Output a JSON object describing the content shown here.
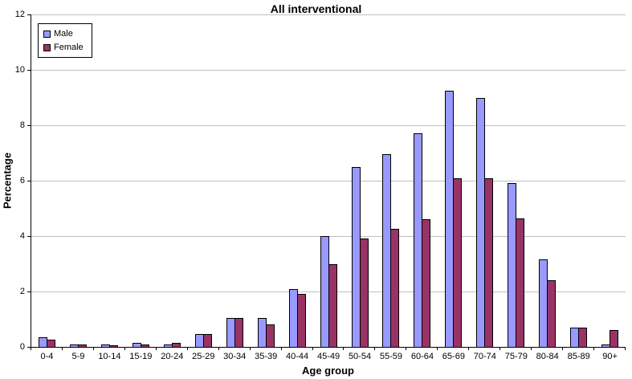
{
  "chart_data": {
    "type": "bar",
    "title": "All interventional",
    "xlabel": "Age group",
    "ylabel": "Percentage",
    "ylim": [
      0,
      12
    ],
    "yticks": [
      0,
      2,
      4,
      6,
      8,
      10,
      12
    ],
    "grid": true,
    "legend_position": "top-left",
    "categories": [
      "0-4",
      "5-9",
      "10-14",
      "15-19",
      "20-24",
      "25-29",
      "30-34",
      "35-39",
      "40-44",
      "45-49",
      "50-54",
      "55-59",
      "60-64",
      "65-69",
      "70-74",
      "75-79",
      "80-84",
      "85-89",
      "90+"
    ],
    "series": [
      {
        "name": "Male",
        "color": "#9999ff",
        "values": [
          0.35,
          0.1,
          0.1,
          0.15,
          0.1,
          0.45,
          1.05,
          1.05,
          2.1,
          4.0,
          6.5,
          6.95,
          7.7,
          9.25,
          9.0,
          5.9,
          3.15,
          0.7,
          0.1
        ]
      },
      {
        "name": "Female",
        "color": "#993366",
        "values": [
          0.25,
          0.1,
          0.05,
          0.1,
          0.15,
          0.45,
          1.05,
          0.8,
          1.9,
          3.0,
          3.9,
          4.25,
          4.6,
          6.1,
          6.1,
          4.65,
          2.4,
          0.7,
          0.6
        ]
      }
    ]
  }
}
